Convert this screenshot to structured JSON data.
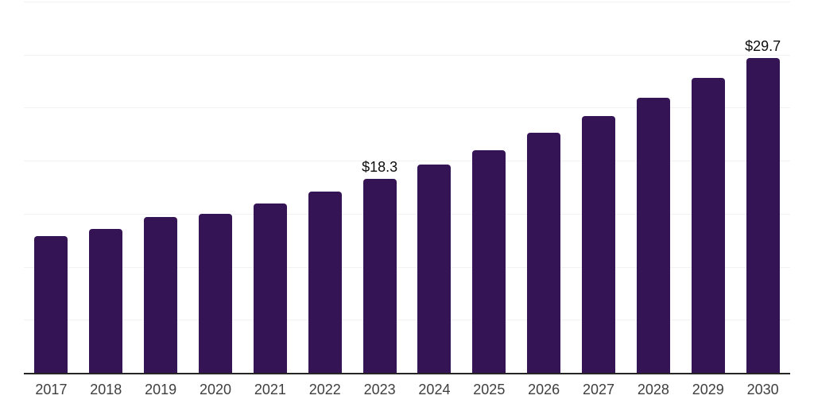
{
  "chart_data": {
    "type": "bar",
    "categories": [
      "2017",
      "2018",
      "2019",
      "2020",
      "2021",
      "2022",
      "2023",
      "2024",
      "2025",
      "2026",
      "2027",
      "2028",
      "2029",
      "2030"
    ],
    "values": [
      12.9,
      13.6,
      14.7,
      15.0,
      16.0,
      17.1,
      18.3,
      19.6,
      21.0,
      22.6,
      24.2,
      25.9,
      27.8,
      29.7
    ],
    "data_labels": [
      {
        "category": "2023",
        "text": "$18.3"
      },
      {
        "category": "2030",
        "text": "$29.7"
      }
    ],
    "ylim": [
      0,
      35
    ],
    "gridline_step": 5,
    "grid": "horizontal",
    "legend": "none",
    "colors": {
      "bar": "#351455",
      "gridline": "#f2f2f2",
      "axis_line": "#262626",
      "tick_label": "#3f3f3f",
      "data_label": "#0d0d0d",
      "background": "#ffffff"
    }
  }
}
